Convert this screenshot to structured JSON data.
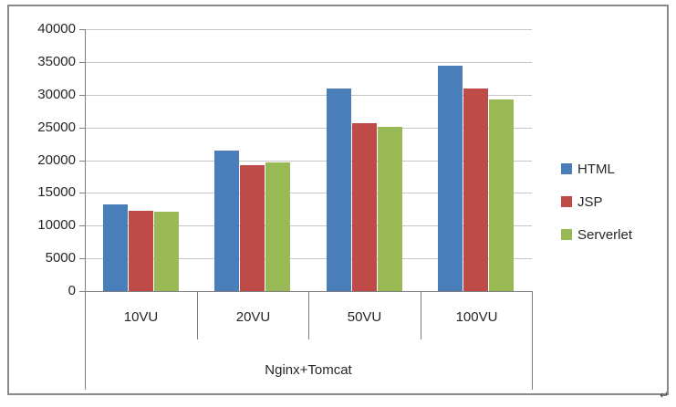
{
  "chart_data": {
    "type": "bar",
    "title": "",
    "categories": [
      "10VU",
      "20VU",
      "50VU",
      "100VU"
    ],
    "series": [
      {
        "name": "HTML",
        "color": "#4a7ebb",
        "values": [
          13300,
          21500,
          31000,
          34400
        ]
      },
      {
        "name": "JSP",
        "color": "#be4b48",
        "values": [
          12300,
          19200,
          25600,
          30900
        ]
      },
      {
        "name": "Serverlet",
        "color": "#98b954",
        "values": [
          12100,
          19600,
          25100,
          29300
        ]
      }
    ],
    "group_label": "Nginx+Tomcat",
    "xlabel": "Nginx+Tomcat",
    "ylabel": "",
    "ylim": [
      0,
      40000
    ],
    "ytick_step": 5000,
    "ytick_labels": [
      "0",
      "5000",
      "10000",
      "15000",
      "20000",
      "25000",
      "30000",
      "35000",
      "40000"
    ],
    "grid": true,
    "legend_position": "right"
  },
  "colors": {
    "gridline": "#c6c6c6",
    "axis": "#7f7f7f",
    "frame_border": "#8a8a8a",
    "label_text": "#262626"
  },
  "page": {
    "paragraph_mark": "↵"
  }
}
